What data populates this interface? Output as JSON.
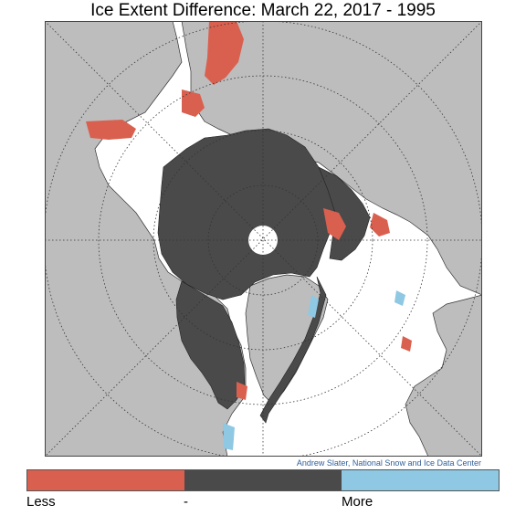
{
  "title": "Ice Extent Difference: March 22, 2017 - 1995",
  "credit": "Andrew Slater, National Snow and Ice Data Center",
  "legend": {
    "items": [
      {
        "label": "Less",
        "color": "#d9604f"
      },
      {
        "label": "-",
        "color": "#4a4a4a"
      },
      {
        "label": "More",
        "color": "#8ec8e3"
      }
    ]
  },
  "map_colors": {
    "land": "#bdbdbd",
    "ocean": "#ffffff",
    "ice_both_years": "#4a4a4a",
    "pole_hole": "#ffffff"
  }
}
